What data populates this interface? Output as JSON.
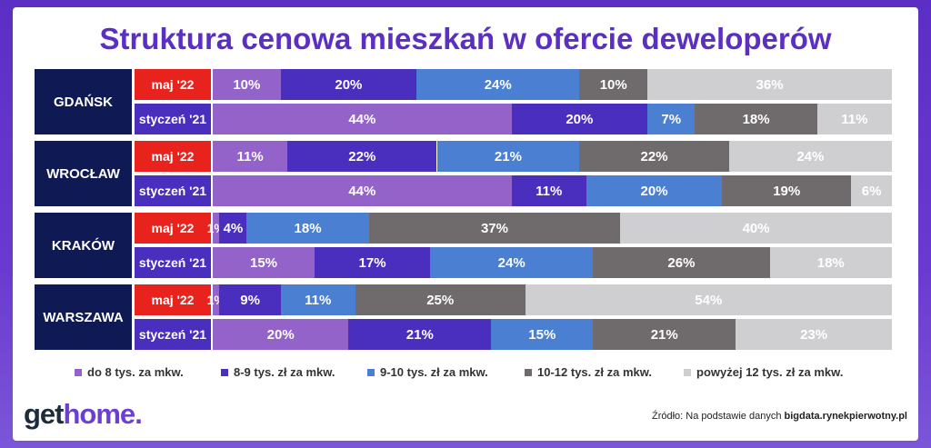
{
  "chart_data": {
    "type": "bar",
    "orientation": "horizontal",
    "stacked": "100%",
    "title": "Struktura cenowa mieszkań w ofercie deweloperów",
    "legend_position": "bottom",
    "series": [
      {
        "name": "do 8 tys. za mkw.",
        "color": "#9363c9"
      },
      {
        "name": "8-9 tys. zł za mkw.",
        "color": "#4a2ebd"
      },
      {
        "name": "9-10 tys. zł za mkw.",
        "color": "#4a7fd2"
      },
      {
        "name": "10-12 tys. zł za mkw.",
        "color": "#6f6b6d"
      },
      {
        "name": "powyżej 12 tys. zł za mkw.",
        "color": "#cfcfd1"
      }
    ],
    "groups": [
      {
        "city": "GDAŃSK",
        "rows": [
          {
            "period": "maj '22",
            "values": [
              10,
              20,
              24,
              10,
              36
            ],
            "labels": [
              "10%",
              "20%",
              "24%",
              "10%",
              "36%"
            ]
          },
          {
            "period": "styczeń '21",
            "values": [
              44,
              20,
              7,
              18,
              11
            ],
            "labels": [
              "44%",
              "20%",
              "7%",
              "18%",
              "11%"
            ]
          }
        ]
      },
      {
        "city": "WROCŁAW",
        "rows": [
          {
            "period": "maj '22",
            "values": [
              11,
              22,
              21,
              22,
              24
            ],
            "labels": [
              "11%",
              "22%",
              "21%",
              "22%",
              "24%"
            ]
          },
          {
            "period": "styczeń '21",
            "values": [
              44,
              11,
              20,
              19,
              6
            ],
            "labels": [
              "44%",
              "11%",
              "20%",
              "19%",
              "6%"
            ]
          }
        ]
      },
      {
        "city": "KRAKÓW",
        "rows": [
          {
            "period": "maj '22",
            "values": [
              1,
              4,
              18,
              37,
              40
            ],
            "labels": [
              "1%",
              "4%",
              "18%",
              "37%",
              "40%"
            ]
          },
          {
            "period": "styczeń '21",
            "values": [
              15,
              17,
              24,
              26,
              18
            ],
            "labels": [
              "15%",
              "17%",
              "24%",
              "26%",
              "18%"
            ]
          }
        ]
      },
      {
        "city": "WARSZAWA",
        "rows": [
          {
            "period": "maj '22",
            "values": [
              1,
              9,
              11,
              25,
              54
            ],
            "labels": [
              "1%",
              "9%",
              "11%",
              "25%",
              "54%"
            ]
          },
          {
            "period": "styczeń '21",
            "values": [
              20,
              21,
              15,
              21,
              23
            ],
            "labels": [
              "20%",
              "21%",
              "15%",
              "21%",
              "23%"
            ]
          }
        ]
      }
    ]
  },
  "period_colors": {
    "maj '22": "#e8221c",
    "styczeń '21": "#4a2ebd"
  },
  "logo": {
    "part1": "get",
    "part2": "home",
    "dot": "."
  },
  "source": {
    "prefix": "Źródło: Na podstawie danych ",
    "bold": "bigdata.rynekpierwotny.pl"
  }
}
